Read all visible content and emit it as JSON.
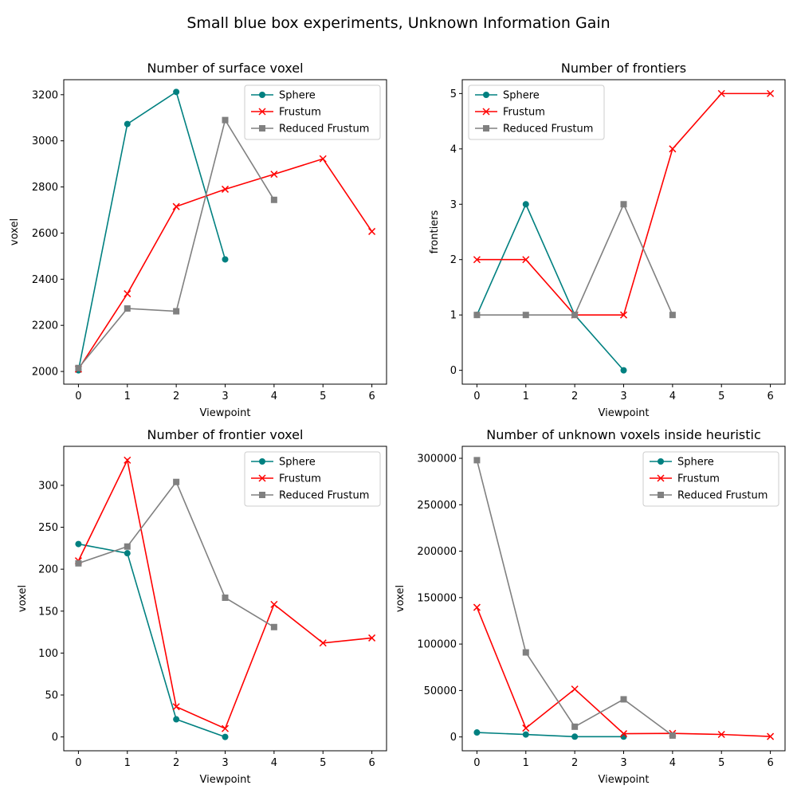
{
  "figure": {
    "title": "Small blue box experiments, Unknown Information Gain"
  },
  "series_styles": [
    {
      "name": "Sphere",
      "color": "#008080",
      "marker": "circle"
    },
    {
      "name": "Frustum",
      "color": "#ff0000",
      "marker": "x"
    },
    {
      "name": "Reduced Frustum",
      "color": "#808080",
      "marker": "square"
    }
  ],
  "chart_data": [
    {
      "type": "line",
      "title": "Number of surface voxel",
      "xlabel": "Viewpoint",
      "ylabel": "voxel",
      "xlim": [
        -0.3,
        6.3
      ],
      "ylim": [
        1945,
        3265
      ],
      "xticks": [
        0,
        1,
        2,
        3,
        4,
        5,
        6
      ],
      "yticks": [
        2000,
        2200,
        2400,
        2600,
        2800,
        3000,
        3200
      ],
      "legend": "top-right",
      "series": [
        {
          "name": "Sphere",
          "x": [
            0,
            1,
            2,
            3
          ],
          "y": [
            2005,
            3073,
            3212,
            2486
          ]
        },
        {
          "name": "Frustum",
          "x": [
            0,
            1,
            2,
            3,
            4,
            5,
            6
          ],
          "y": [
            2010,
            2337,
            2715,
            2790,
            2855,
            2922,
            2607
          ]
        },
        {
          "name": "Reduced Frustum",
          "x": [
            0,
            1,
            2,
            3,
            4
          ],
          "y": [
            2015,
            2273,
            2261,
            3090,
            2744
          ]
        }
      ]
    },
    {
      "type": "line",
      "title": "Number of frontiers",
      "xlabel": "Viewpoint",
      "ylabel": "frontiers",
      "xlim": [
        -0.3,
        6.3
      ],
      "ylim": [
        -0.25,
        5.25
      ],
      "xticks": [
        0,
        1,
        2,
        3,
        4,
        5,
        6
      ],
      "yticks": [
        0,
        1,
        2,
        3,
        4,
        5
      ],
      "legend": "top-left",
      "series": [
        {
          "name": "Sphere",
          "x": [
            0,
            1,
            2,
            3
          ],
          "y": [
            1,
            3,
            1,
            0
          ]
        },
        {
          "name": "Frustum",
          "x": [
            0,
            1,
            2,
            3,
            4,
            5,
            6
          ],
          "y": [
            2,
            2,
            1,
            1,
            4,
            5,
            5
          ]
        },
        {
          "name": "Reduced Frustum",
          "x": [
            0,
            1,
            2,
            3,
            4
          ],
          "y": [
            1,
            1,
            1,
            3,
            1
          ]
        }
      ]
    },
    {
      "type": "line",
      "title": "Number of frontier voxel",
      "xlabel": "Viewpoint",
      "ylabel": "voxel",
      "xlim": [
        -0.3,
        6.3
      ],
      "ylim": [
        -16.5,
        346.5
      ],
      "xticks": [
        0,
        1,
        2,
        3,
        4,
        5,
        6
      ],
      "yticks": [
        0,
        50,
        100,
        150,
        200,
        250,
        300
      ],
      "legend": "top-right",
      "series": [
        {
          "name": "Sphere",
          "x": [
            0,
            1,
            2,
            3
          ],
          "y": [
            230,
            219,
            21,
            0
          ]
        },
        {
          "name": "Frustum",
          "x": [
            0,
            1,
            2,
            3,
            4,
            5,
            6
          ],
          "y": [
            210,
            330,
            36,
            10,
            158,
            112,
            118
          ]
        },
        {
          "name": "Reduced Frustum",
          "x": [
            0,
            1,
            2,
            3,
            4
          ],
          "y": [
            207,
            227,
            304,
            166,
            131
          ]
        }
      ]
    },
    {
      "type": "line",
      "title": "Number of unknown voxels inside heuristic",
      "xlabel": "Viewpoint",
      "ylabel": "voxel",
      "xlim": [
        -0.3,
        6.3
      ],
      "ylim": [
        -14900,
        312900
      ],
      "xticks": [
        0,
        1,
        2,
        3,
        4,
        5,
        6
      ],
      "yticks": [
        0,
        50000,
        100000,
        150000,
        200000,
        250000,
        300000
      ],
      "legend": "top-right",
      "series": [
        {
          "name": "Sphere",
          "x": [
            0,
            1,
            2,
            3
          ],
          "y": [
            4800,
            2600,
            300,
            300
          ]
        },
        {
          "name": "Frustum",
          "x": [
            0,
            1,
            2,
            3,
            4,
            5,
            6
          ],
          "y": [
            139500,
            9500,
            51500,
            3500,
            3800,
            2700,
            500
          ]
        },
        {
          "name": "Reduced Frustum",
          "x": [
            0,
            1,
            2,
            3,
            4
          ],
          "y": [
            298000,
            91000,
            11000,
            40500,
            1500
          ]
        }
      ]
    }
  ]
}
